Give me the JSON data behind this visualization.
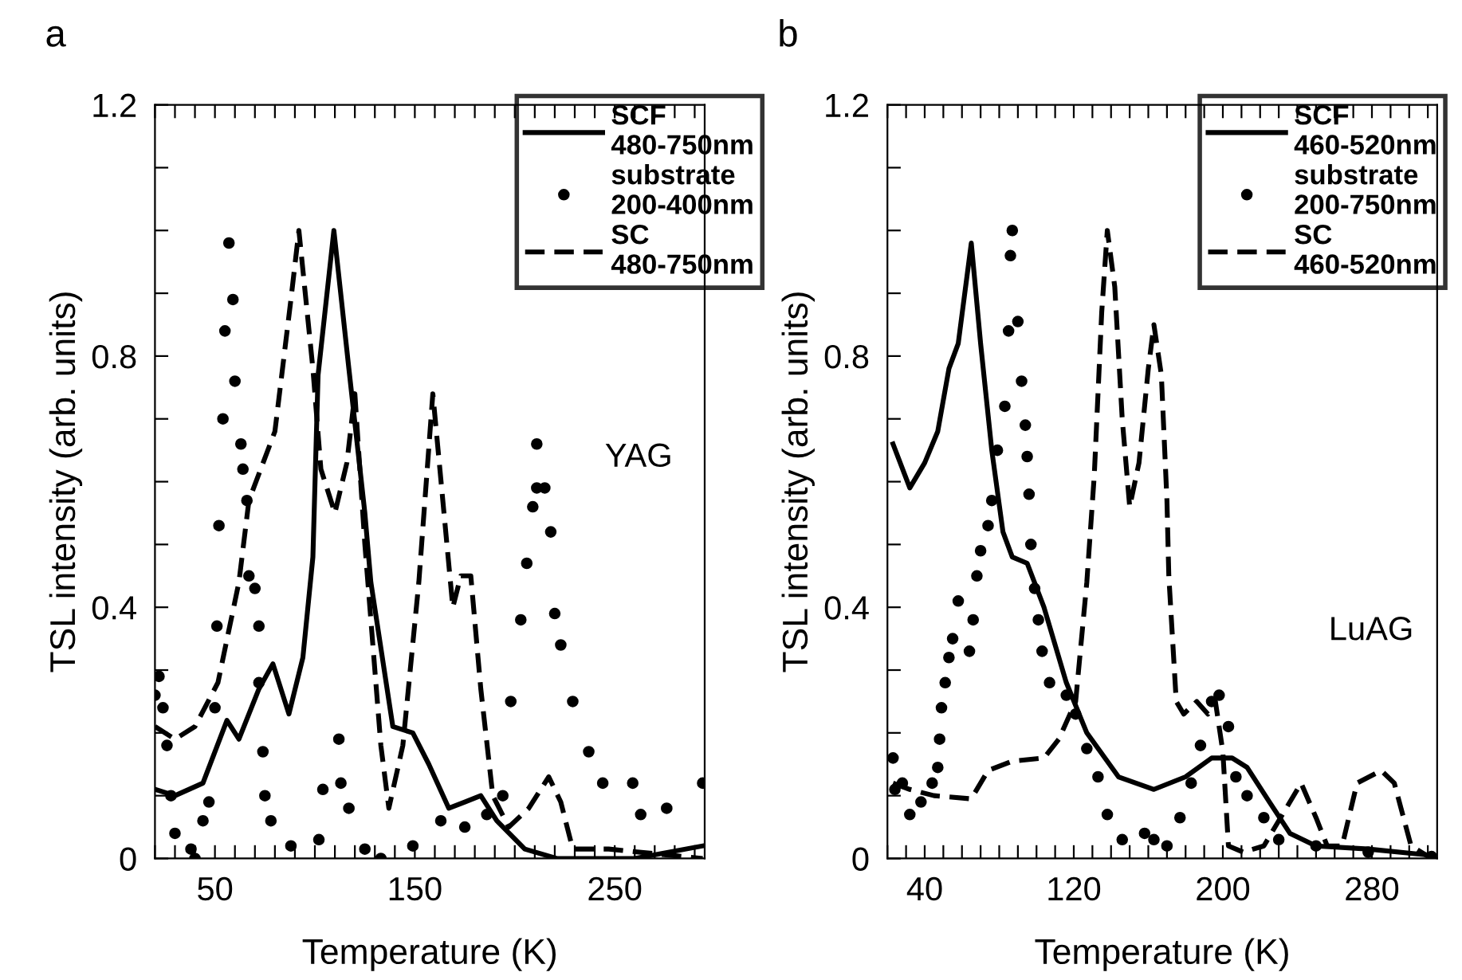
{
  "chart_data": [
    {
      "type": "line",
      "title": "a",
      "xlabel": "Temperature (K)",
      "ylabel": "TSL intensity (arb. units)",
      "annotations": [
        "YAG"
      ],
      "legend": "top right",
      "xlim": [
        20,
        295
      ],
      "xticks": [
        {
          "value": 20,
          "label": null
        },
        {
          "value": 30,
          "label": null
        },
        {
          "value": 40,
          "label": null
        },
        50,
        {
          "value": 60,
          "label": null
        },
        {
          "value": 70,
          "label": null
        },
        {
          "value": 80,
          "label": null
        },
        {
          "value": 90,
          "label": null
        },
        {
          "value": 100,
          "label": null
        },
        {
          "value": 110,
          "label": null
        },
        {
          "value": 120,
          "label": null
        },
        {
          "value": 130,
          "label": null
        },
        {
          "value": 140,
          "label": null
        },
        150,
        {
          "value": 160,
          "label": null
        },
        {
          "value": 170,
          "label": null
        },
        {
          "value": 180,
          "label": null
        },
        {
          "value": 190,
          "label": null
        },
        {
          "value": 200,
          "label": null
        },
        {
          "value": 210,
          "label": null
        },
        {
          "value": 220,
          "label": null
        },
        {
          "value": 230,
          "label": null
        },
        {
          "value": 240,
          "label": null
        },
        250,
        {
          "value": 260,
          "label": null
        },
        {
          "value": 270,
          "label": null
        },
        {
          "value": 280,
          "label": null
        },
        {
          "value": 290,
          "label": null
        }
      ],
      "ylim": [
        0,
        1.2
      ],
      "yticks": [
        0,
        {
          "value": 0.1,
          "label": null
        },
        {
          "value": 0.2,
          "label": null
        },
        {
          "value": 0.3,
          "label": null
        },
        0.4,
        {
          "value": 0.5,
          "label": null
        },
        {
          "value": 0.6,
          "label": null
        },
        {
          "value": 0.7,
          "label": null
        },
        0.8,
        {
          "value": 0.9,
          "label": null
        },
        {
          "value": 1.0,
          "label": null
        },
        {
          "value": 1.1,
          "label": null
        },
        1.2
      ],
      "series": [
        {
          "name": "SCF\n480-750nm",
          "line_style": "solid",
          "color": "#000000",
          "x": [
            20,
            30,
            44,
            56,
            62,
            72,
            79,
            87,
            94,
            99,
            101.6,
            109.5,
            117,
            125,
            128,
            139,
            149,
            157,
            167,
            175,
            183,
            191,
            205,
            221,
            260,
            294
          ],
          "values": [
            0.11,
            0.1,
            0.12,
            0.22,
            0.19,
            0.27,
            0.31,
            0.23,
            0.32,
            0.48,
            0.77,
            1.0,
            0.78,
            0.55,
            0.44,
            0.21,
            0.2,
            0.15,
            0.08,
            0.09,
            0.1,
            0.06,
            0.015,
            0.0,
            0.0,
            0.02
          ]
        },
        {
          "name": "substrate\n200-400nm",
          "type": "scatter",
          "marker": "circle",
          "color": "#000000",
          "x": [
            20,
            22,
            24,
            26,
            28,
            30,
            38,
            40,
            44,
            47,
            50,
            51,
            52,
            54,
            55,
            57,
            59,
            60,
            63,
            64,
            66,
            67,
            70,
            72,
            72,
            74,
            75,
            78,
            88,
            102,
            104,
            112,
            113,
            117,
            125,
            133,
            149,
            163,
            175,
            186,
            194,
            198,
            203,
            206,
            209,
            211,
            211,
            215,
            218,
            220,
            223,
            229,
            237,
            244,
            259,
            263,
            276,
            294
          ],
          "values": [
            0.26,
            0.29,
            0.24,
            0.18,
            0.1,
            0.04,
            0.015,
            0.0,
            0.06,
            0.09,
            0.24,
            0.37,
            0.53,
            0.7,
            0.84,
            0.98,
            0.89,
            0.76,
            0.66,
            0.62,
            0.57,
            0.45,
            0.43,
            0.37,
            0.28,
            0.17,
            0.1,
            0.06,
            0.02,
            0.03,
            0.11,
            0.19,
            0.12,
            0.08,
            0.015,
            0.0,
            0.02,
            0.06,
            0.05,
            0.07,
            0.1,
            0.25,
            0.38,
            0.47,
            0.56,
            0.59,
            0.66,
            0.59,
            0.52,
            0.39,
            0.34,
            0.25,
            0.17,
            0.12,
            0.12,
            0.07,
            0.08,
            0.12
          ]
        },
        {
          "name": "SC\n480-750nm",
          "line_style": "dashed",
          "color": "#000000",
          "x": [
            20,
            30,
            40,
            51.5,
            62,
            67,
            80,
            88,
            92,
            99,
            103,
            110,
            116,
            120,
            125,
            133,
            137,
            144,
            152,
            159,
            164,
            169,
            173,
            178,
            183,
            189,
            197,
            207,
            217,
            223,
            229,
            247,
            294
          ],
          "values": [
            0.21,
            0.19,
            0.21,
            0.28,
            0.44,
            0.57,
            0.68,
            0.89,
            1.0,
            0.78,
            0.62,
            0.55,
            0.63,
            0.74,
            0.5,
            0.18,
            0.08,
            0.18,
            0.44,
            0.74,
            0.57,
            0.4,
            0.45,
            0.45,
            0.27,
            0.1,
            0.05,
            0.08,
            0.13,
            0.09,
            0.015,
            0.015,
            0.0
          ]
        }
      ]
    },
    {
      "type": "line",
      "title": "b",
      "xlabel": "Temperature (K)",
      "ylabel": "TSL intensity (arb. units)",
      "annotations": [
        "LuAG"
      ],
      "legend": "top right",
      "xlim": [
        20,
        315
      ],
      "xticks": [
        {
          "value": 20,
          "label": null
        },
        {
          "value": 30,
          "label": null
        },
        40,
        {
          "value": 50,
          "label": null
        },
        {
          "value": 60,
          "label": null
        },
        {
          "value": 70,
          "label": null
        },
        {
          "value": 80,
          "label": null
        },
        {
          "value": 90,
          "label": null
        },
        {
          "value": 100,
          "label": null
        },
        {
          "value": 110,
          "label": null
        },
        120,
        {
          "value": 130,
          "label": null
        },
        {
          "value": 140,
          "label": null
        },
        {
          "value": 150,
          "label": null
        },
        {
          "value": 160,
          "label": null
        },
        {
          "value": 170,
          "label": null
        },
        {
          "value": 180,
          "label": null
        },
        {
          "value": 190,
          "label": null
        },
        200,
        {
          "value": 210,
          "label": null
        },
        {
          "value": 220,
          "label": null
        },
        {
          "value": 230,
          "label": null
        },
        {
          "value": 240,
          "label": null
        },
        {
          "value": 250,
          "label": null
        },
        {
          "value": 260,
          "label": null
        },
        {
          "value": 270,
          "label": null
        },
        280,
        {
          "value": 290,
          "label": null
        },
        {
          "value": 300,
          "label": null
        },
        {
          "value": 310,
          "label": null
        }
      ],
      "ylim": [
        0,
        1.2
      ],
      "yticks": [
        0,
        {
          "value": 0.1,
          "label": null
        },
        {
          "value": 0.2,
          "label": null
        },
        {
          "value": 0.3,
          "label": null
        },
        0.4,
        {
          "value": 0.5,
          "label": null
        },
        {
          "value": 0.6,
          "label": null
        },
        {
          "value": 0.7,
          "label": null
        },
        0.8,
        {
          "value": 0.9,
          "label": null
        },
        {
          "value": 1.0,
          "label": null
        },
        {
          "value": 1.1,
          "label": null
        },
        1.2
      ],
      "series": [
        {
          "name": "SCF\n460-520nm",
          "line_style": "solid",
          "color": "#000000",
          "x": [
            23,
            32,
            40,
            47,
            53,
            58,
            65,
            70,
            76,
            82,
            87,
            95,
            104,
            116,
            127,
            144,
            163,
            180,
            194,
            205,
            213,
            225,
            236,
            250,
            278,
            312
          ],
          "values": [
            0.66,
            0.59,
            0.63,
            0.68,
            0.78,
            0.82,
            0.98,
            0.82,
            0.65,
            0.52,
            0.48,
            0.47,
            0.4,
            0.28,
            0.2,
            0.13,
            0.11,
            0.13,
            0.16,
            0.16,
            0.145,
            0.09,
            0.04,
            0.02,
            0.015,
            0.005
          ]
        },
        {
          "name": "substrate\n200-750nm",
          "type": "scatter",
          "marker": "circle",
          "color": "#000000",
          "x": [
            23,
            24,
            28,
            32,
            38,
            44,
            47,
            48,
            49,
            51,
            53,
            55,
            58,
            64,
            66,
            68,
            70,
            74,
            76,
            79,
            83,
            85,
            86,
            87,
            90,
            92,
            94,
            95,
            96,
            97,
            99,
            101,
            103,
            107,
            116,
            121,
            127,
            133,
            138,
            146,
            158,
            163,
            170,
            177,
            183,
            188,
            194,
            198,
            203,
            207,
            213,
            222,
            230,
            250,
            278,
            312
          ],
          "values": [
            0.16,
            0.11,
            0.12,
            0.07,
            0.09,
            0.12,
            0.145,
            0.19,
            0.24,
            0.28,
            0.32,
            0.35,
            0.41,
            0.33,
            0.38,
            0.45,
            0.49,
            0.53,
            0.57,
            0.65,
            0.72,
            0.84,
            0.96,
            1.0,
            0.855,
            0.76,
            0.69,
            0.64,
            0.58,
            0.5,
            0.43,
            0.38,
            0.33,
            0.28,
            0.26,
            0.23,
            0.175,
            0.13,
            0.07,
            0.03,
            0.04,
            0.03,
            0.02,
            0.065,
            0.12,
            0.18,
            0.25,
            0.26,
            0.21,
            0.13,
            0.1,
            0.065,
            0.03,
            0.02,
            0.01,
            0.003
          ]
        },
        {
          "name": "SC\n460-520nm",
          "line_style": "dashed",
          "color": "#000000",
          "x": [
            23,
            32,
            45,
            65,
            74,
            87,
            104,
            112,
            121,
            127,
            131,
            135,
            138,
            142,
            146,
            150,
            155,
            160,
            163,
            167,
            170,
            171,
            175,
            179,
            186,
            192,
            196,
            200,
            203,
            211,
            222,
            234,
            242,
            250,
            256,
            264,
            272,
            285,
            292,
            301,
            312
          ],
          "values": [
            0.12,
            0.11,
            0.1,
            0.095,
            0.14,
            0.155,
            0.16,
            0.19,
            0.25,
            0.44,
            0.61,
            0.87,
            1.0,
            0.91,
            0.7,
            0.56,
            0.63,
            0.78,
            0.85,
            0.77,
            0.57,
            0.45,
            0.25,
            0.23,
            0.25,
            0.23,
            0.25,
            0.17,
            0.02,
            0.01,
            0.02,
            0.08,
            0.12,
            0.065,
            0.02,
            0.02,
            0.12,
            0.14,
            0.12,
            0.02,
            0.0
          ]
        }
      ]
    }
  ]
}
